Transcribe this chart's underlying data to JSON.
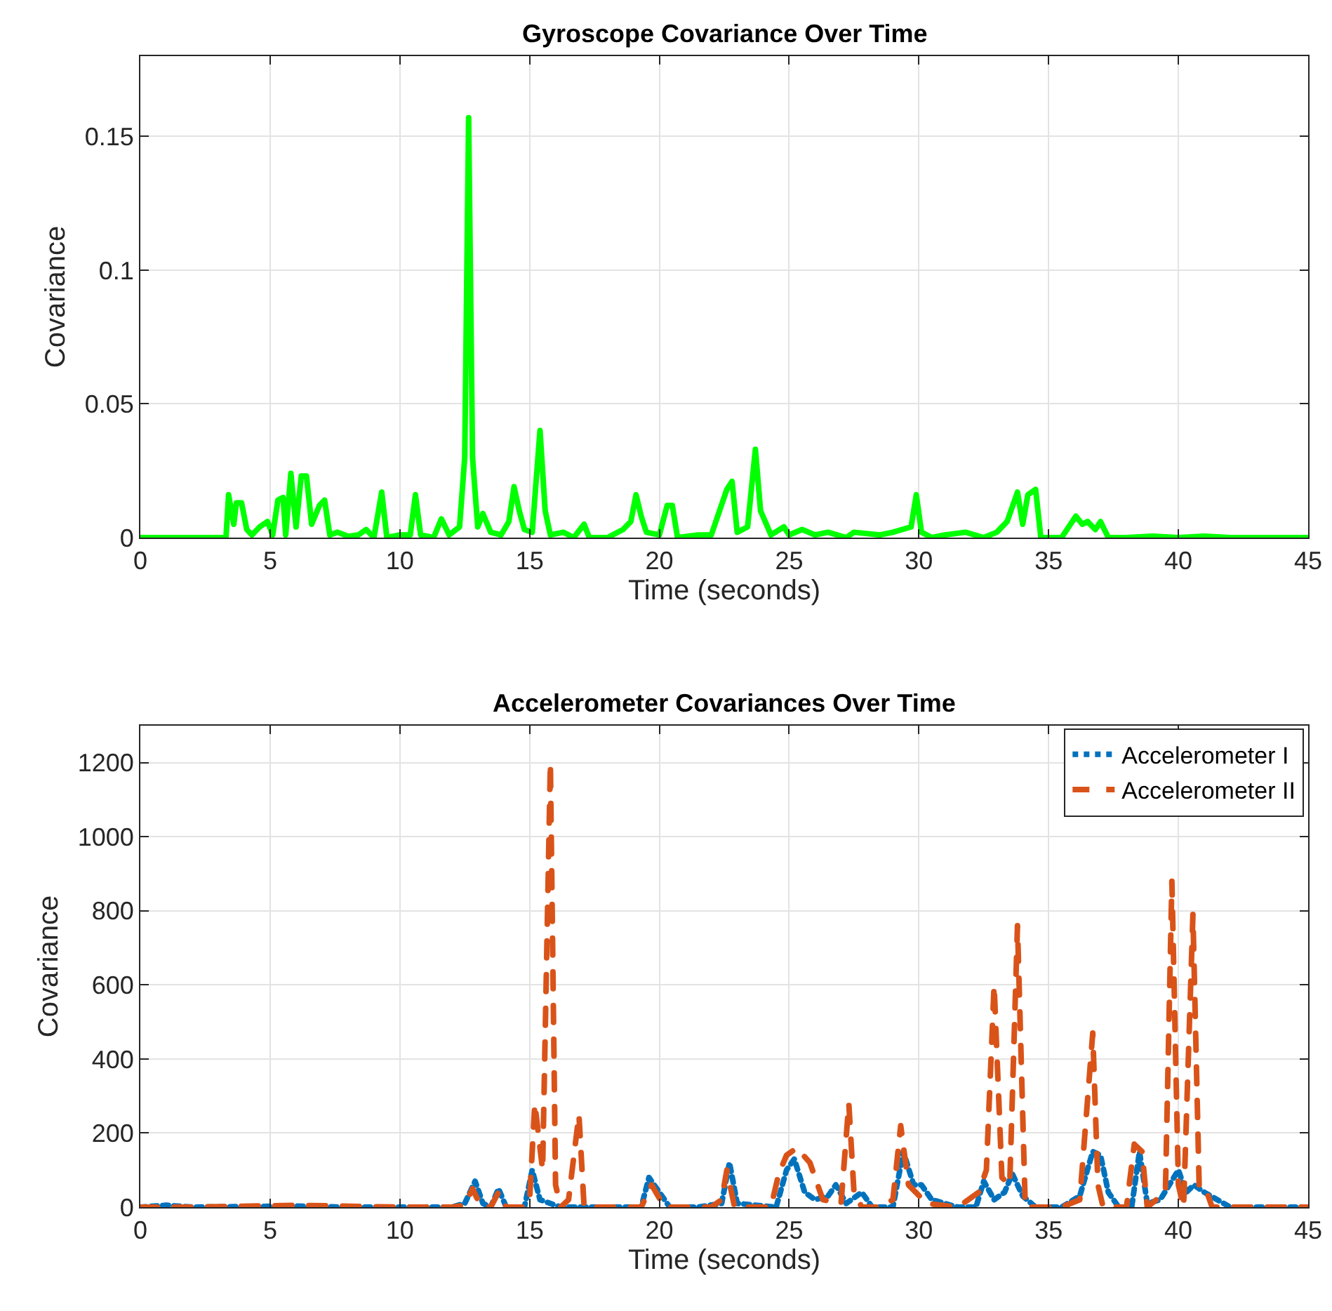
{
  "chart_data": [
    {
      "type": "line",
      "title": "Gyroscope Covariance Over Time",
      "xlabel": "Time (seconds)",
      "ylabel": "Covariance",
      "xlim": [
        0,
        45
      ],
      "ylim": [
        0,
        0.18
      ],
      "xticks": [
        0,
        5,
        10,
        15,
        20,
        25,
        30,
        35,
        40,
        45
      ],
      "yticks": [
        0,
        {
          "value": 0.05,
          "label": "0.05"
        },
        {
          "value": 0.1,
          "label": "0.1"
        },
        {
          "value": 0.15,
          "label": "0.15"
        }
      ],
      "grid": true,
      "legend": false,
      "line_style": "solid",
      "series": [
        {
          "color": "#00ff00",
          "x": [
            0,
            3.3,
            3.4,
            3.6,
            3.7,
            3.9,
            4.1,
            4.3,
            4.6,
            4.9,
            5.1,
            5.3,
            5.5,
            5.6,
            5.8,
            6.0,
            6.2,
            6.4,
            6.6,
            6.9,
            7.1,
            7.3,
            7.6,
            8.0,
            8.4,
            8.7,
            9.0,
            9.3,
            9.5,
            10.0,
            10.4,
            10.6,
            10.8,
            11.3,
            11.6,
            11.9,
            12.3,
            12.5,
            12.65,
            12.8,
            13.0,
            13.2,
            13.5,
            13.9,
            14.2,
            14.4,
            14.6,
            14.8,
            15.1,
            15.4,
            15.6,
            15.8,
            16.3,
            16.7,
            17.1,
            17.3,
            18.0,
            18.6,
            18.9,
            19.1,
            19.3,
            19.5,
            20.0,
            20.3,
            20.5,
            20.7,
            21.5,
            22.0,
            22.6,
            22.8,
            23.0,
            23.4,
            23.7,
            23.9,
            24.3,
            24.8,
            25.0,
            25.5,
            26.0,
            26.5,
            27.2,
            27.5,
            28.5,
            29.0,
            29.7,
            29.9,
            30.1,
            30.5,
            31.0,
            31.8,
            32.5,
            33.0,
            33.4,
            33.8,
            34.0,
            34.2,
            34.5,
            34.7,
            35.5,
            36.05,
            36.3,
            36.5,
            36.8,
            37.0,
            37.3,
            38.0,
            39.0,
            40.0,
            41.0,
            42.0,
            45.0
          ],
          "values": [
            0,
            0,
            0.016,
            0.005,
            0.013,
            0.013,
            0.003,
            0.001,
            0.004,
            0.006,
            0.001,
            0.014,
            0.015,
            0.001,
            0.024,
            0.004,
            0.023,
            0.023,
            0.005,
            0.012,
            0.014,
            0.001,
            0.002,
            0.0005,
            0.001,
            0.003,
            0,
            0.017,
            0,
            0.001,
            0.001,
            0.016,
            0.001,
            0,
            0.007,
            0.001,
            0.004,
            0.03,
            0.157,
            0.03,
            0.004,
            0.009,
            0.002,
            0.001,
            0.006,
            0.019,
            0.01,
            0.003,
            0.002,
            0.04,
            0.01,
            0.001,
            0.002,
            0,
            0.005,
            0,
            0,
            0.003,
            0.006,
            0.016,
            0.008,
            0.002,
            0.001,
            0.012,
            0.012,
            0,
            0.001,
            0.001,
            0.018,
            0.021,
            0.002,
            0.004,
            0.033,
            0.01,
            0.001,
            0.004,
            0.001,
            0.003,
            0.001,
            0.002,
            0,
            0.002,
            0.001,
            0.002,
            0.004,
            0.016,
            0.002,
            0,
            0.001,
            0.002,
            0,
            0.002,
            0.006,
            0.017,
            0.005,
            0.016,
            0.018,
            0,
            0,
            0.008,
            0.005,
            0.006,
            0.003,
            0.006,
            0,
            0,
            0.0005,
            0,
            0.0005,
            0,
            0
          ]
        }
      ]
    },
    {
      "type": "line",
      "title": "Accelerometer Covariances Over Time",
      "xlabel": "Time (seconds)",
      "ylabel": "Covariance",
      "xlim": [
        0,
        45
      ],
      "ylim": [
        0,
        1300
      ],
      "xticks": [
        0,
        5,
        10,
        15,
        20,
        25,
        30,
        35,
        40,
        45
      ],
      "yticks": [
        0,
        200,
        400,
        600,
        800,
        1000,
        1200
      ],
      "grid": true,
      "legend": "top right",
      "series": [
        {
          "name": "Accelerometer I",
          "color": "#0072bd",
          "line_style": "dotted",
          "x": [
            0,
            1,
            2,
            6,
            8,
            12,
            12.5,
            12.9,
            13.2,
            13.5,
            13.8,
            14.1,
            14.8,
            15.1,
            15.4,
            15.8,
            16.2,
            17,
            19.3,
            19.6,
            20.0,
            20.4,
            21.5,
            22.4,
            22.7,
            23.0,
            24.5,
            24.9,
            25.2,
            25.6,
            26.0,
            26.5,
            26.8,
            27.2,
            27.8,
            28.2,
            29.0,
            29.4,
            29.8,
            30.1,
            30.5,
            31.5,
            32.2,
            32.5,
            32.9,
            33.3,
            33.6,
            34.0,
            34.5,
            35.5,
            36.2,
            36.7,
            37.0,
            37.3,
            37.7,
            38.2,
            38.5,
            38.8,
            39.3,
            40.0,
            40.3,
            40.6,
            41.0,
            42,
            45
          ],
          "values": [
            0,
            5,
            0,
            3,
            0,
            0,
            10,
            70,
            10,
            0,
            50,
            0,
            0,
            100,
            20,
            10,
            0,
            0,
            0,
            80,
            40,
            0,
            0,
            10,
            120,
            10,
            0,
            100,
            130,
            40,
            20,
            30,
            60,
            10,
            40,
            0,
            0,
            150,
            60,
            60,
            20,
            0,
            0,
            70,
            20,
            40,
            90,
            30,
            0,
            0,
            30,
            150,
            140,
            40,
            0,
            0,
            150,
            10,
            20,
            100,
            40,
            60,
            40,
            0,
            0
          ]
        },
        {
          "name": "Accelerometer II",
          "color": "#d95319",
          "line_style": "dashed",
          "x": [
            0,
            2,
            6,
            10,
            12,
            12.5,
            12.8,
            13.1,
            13.5,
            13.8,
            14.1,
            14.8,
            15.0,
            15.2,
            15.5,
            15.8,
            16.0,
            16.2,
            16.5,
            16.9,
            17.1,
            19.3,
            19.7,
            20.2,
            22.0,
            22.4,
            22.6,
            22.9,
            24.3,
            24.6,
            24.9,
            25.3,
            25.8,
            26.3,
            27.0,
            27.3,
            27.5,
            27.8,
            28.5,
            29.0,
            29.3,
            29.6,
            30.3,
            31.5,
            32.3,
            32.6,
            32.9,
            33.2,
            33.5,
            33.8,
            34.1,
            35.5,
            36.2,
            36.7,
            36.9,
            37.1,
            38.0,
            38.3,
            38.6,
            38.8,
            39.5,
            39.75,
            40.0,
            40.2,
            40.56,
            40.8,
            41.0,
            41.3,
            45
          ],
          "values": [
            0,
            0,
            5,
            0,
            0,
            5,
            50,
            5,
            0,
            40,
            0,
            0,
            20,
            280,
            100,
            1200,
            60,
            0,
            20,
            250,
            0,
            0,
            60,
            0,
            0,
            20,
            100,
            0,
            0,
            90,
            140,
            160,
            120,
            20,
            10,
            280,
            40,
            0,
            0,
            20,
            220,
            60,
            10,
            0,
            40,
            100,
            600,
            80,
            60,
            760,
            0,
            0,
            20,
            470,
            60,
            0,
            0,
            170,
            150,
            0,
            40,
            880,
            60,
            0,
            790,
            60,
            60,
            0,
            0
          ]
        }
      ]
    }
  ]
}
